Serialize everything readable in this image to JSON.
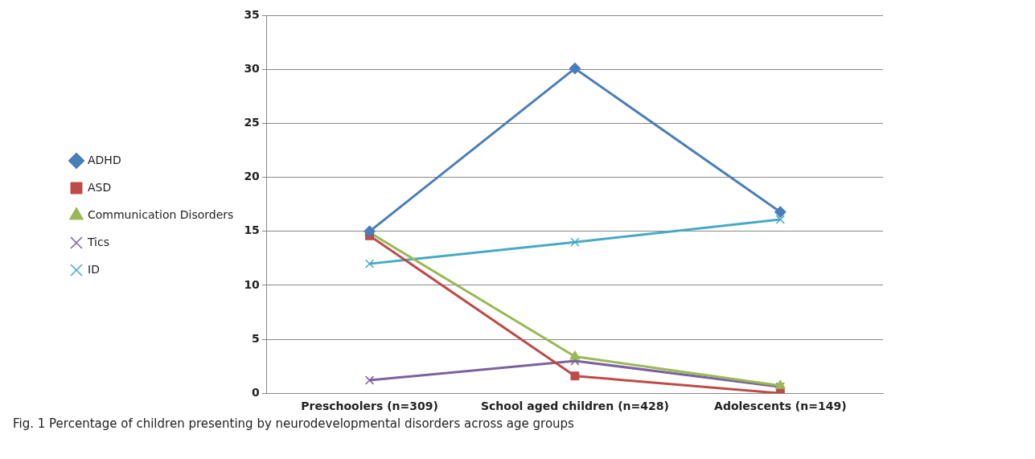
{
  "chart_data": {
    "type": "line",
    "categories": [
      "Preschoolers (n=309)",
      "School aged children (n=428)",
      "Adolescents (n=149)"
    ],
    "series": [
      {
        "name": "ADHD",
        "color": "#4a7ebb",
        "marker": "diamond",
        "values": [
          15,
          30.1,
          16.8
        ]
      },
      {
        "name": "ASD",
        "color": "#be4b48",
        "marker": "square",
        "values": [
          14.6,
          1.6,
          0
        ]
      },
      {
        "name": "Communication Disorders",
        "color": "#98b954",
        "marker": "triangle",
        "values": [
          14.9,
          3.4,
          0.7
        ]
      },
      {
        "name": "Tics",
        "color": "#7d60a0",
        "marker": "cross",
        "values": [
          1.2,
          3,
          0.6
        ]
      },
      {
        "name": "ID",
        "color": "#46aac5",
        "marker": "cross",
        "values": [
          12,
          14,
          16.1
        ]
      }
    ],
    "ylim": [
      0,
      35
    ],
    "yticks": [
      0,
      5,
      10,
      15,
      20,
      25,
      30,
      35
    ],
    "grid": "y",
    "legend": "left",
    "annotations": [
      "Fig. 1  Percentage of children presenting by neurodevelopmental disorders across age groups"
    ]
  }
}
